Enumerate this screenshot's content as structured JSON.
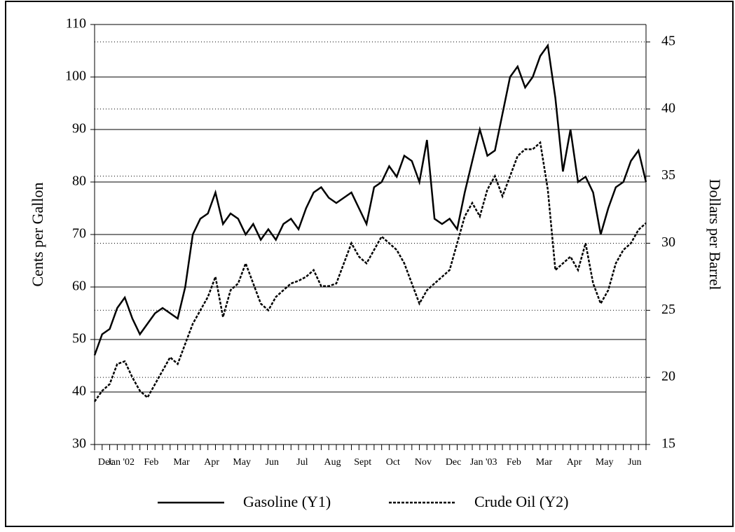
{
  "chart_data": {
    "type": "line",
    "categories": [
      "Dec",
      null,
      "Jan '02",
      null,
      null,
      null,
      "Feb",
      null,
      null,
      null,
      "Mar",
      null,
      null,
      null,
      "Apr",
      null,
      null,
      null,
      "May",
      null,
      null,
      null,
      "Jun",
      null,
      null,
      null,
      "Jul",
      null,
      null,
      null,
      "Aug",
      null,
      null,
      null,
      "Sept",
      null,
      null,
      null,
      "Oct",
      null,
      null,
      null,
      "Nov",
      null,
      null,
      null,
      "Dec",
      null,
      null,
      null,
      "Jan '03",
      null,
      null,
      null,
      "Feb",
      null,
      null,
      null,
      "Mar",
      null,
      null,
      null,
      "Apr",
      null,
      null,
      null,
      "May",
      null,
      null,
      null,
      "Jun",
      null,
      null,
      null
    ],
    "series": [
      {
        "name": "Gasoline (Y1)",
        "color": "#000000",
        "dash": "none",
        "axis": "y",
        "values": [
          47,
          51,
          52,
          56,
          58,
          54,
          51,
          53,
          55,
          56,
          55,
          54,
          60,
          70,
          73,
          74,
          78,
          72,
          74,
          73,
          70,
          72,
          69,
          71,
          69,
          72,
          73,
          71,
          75,
          78,
          79,
          77,
          76,
          77,
          78,
          75,
          72,
          79,
          80,
          83,
          81,
          85,
          84,
          80,
          88,
          73,
          72,
          73,
          71,
          78,
          84,
          90,
          85,
          86,
          93,
          100,
          102,
          98,
          100,
          104,
          106,
          96,
          82,
          90,
          80,
          81,
          78,
          70,
          75,
          79,
          80,
          84,
          86,
          80
        ]
      },
      {
        "name": "Crude Oil (Y2)",
        "color": "#000000",
        "dash": "4 2",
        "axis": "y2",
        "values": [
          18.2,
          19,
          19.5,
          21,
          21.2,
          20,
          19,
          18.5,
          19.5,
          20.5,
          21.5,
          21,
          22.5,
          24,
          25,
          26,
          27.5,
          24.5,
          26.5,
          27,
          28.5,
          27,
          25.5,
          25,
          26,
          26.5,
          27,
          27.2,
          27.5,
          28,
          26.8,
          26.8,
          27,
          28.5,
          30,
          29,
          28.5,
          29.5,
          30.5,
          30,
          29.5,
          28.5,
          27,
          25.5,
          26.5,
          27,
          27.5,
          28,
          30,
          32,
          33,
          32,
          34,
          35,
          33.5,
          35,
          36.5,
          37,
          37,
          37.5,
          34,
          28,
          28.5,
          29,
          28,
          30,
          27,
          25.5,
          26.5,
          28.5,
          29.5,
          30,
          31,
          31.5
        ]
      }
    ],
    "y_label": "Cents per Gallon",
    "y2_label": "Dollars per Barrel",
    "ylim": [
      30,
      110
    ],
    "yticks": [
      30,
      40,
      50,
      60,
      70,
      80,
      90,
      100,
      110
    ],
    "y2lim": [
      15,
      46.3
    ],
    "y2ticks": [
      15,
      20,
      25,
      30,
      35,
      40,
      45
    ],
    "grid": true,
    "legend": "bottom"
  }
}
